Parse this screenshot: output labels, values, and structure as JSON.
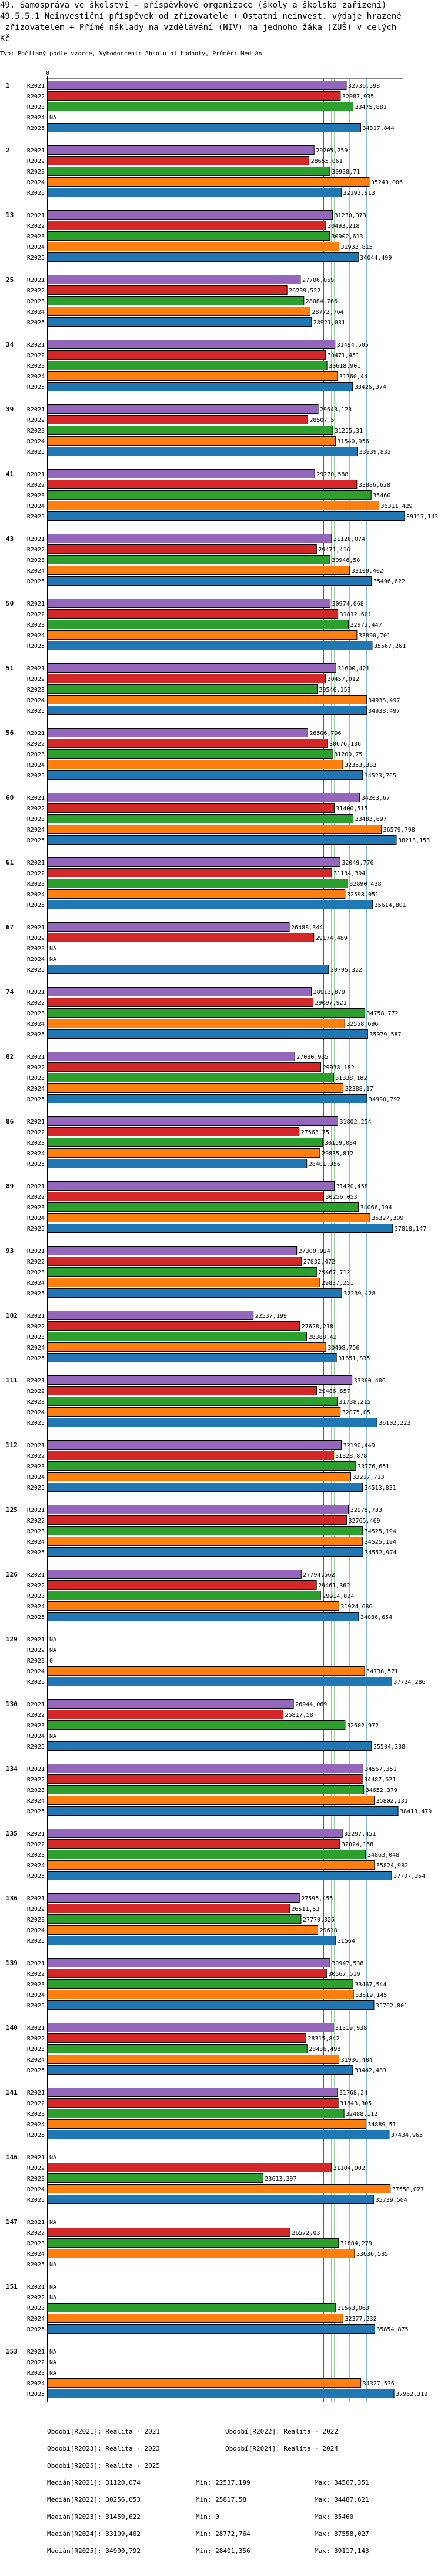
{
  "title_lines": [
    "49. Samospráva ve školství - příspěvkové organizace (školy a školská zařízení)",
    "49.5.5.1 Neinvestiční příspěvek od zřizovatele + Ostatní neinvest. výdaje hrazené",
    " zřizovatelem + Přímé náklady na vzdělávání (NIV) na jednoho žáka (ZUŠ) v celých",
    "Kč"
  ],
  "subtitle": "Typ: Počítaný podle vzorce, Vyhodnocení: Absolutní hodnoty, Průměr: Medián",
  "chart_data": {
    "type": "bar",
    "orientation": "horizontal",
    "title": "49.5.5.1 Neinvestiční příspěvek od zřizovatele + Ostatní neinvest. výdaje hrazené zřizovatelem + Přímé náklady na vzdělávání (NIV) na jednoho žáka (ZUŠ) v celých Kč",
    "xlabel": "",
    "ylabel": "",
    "axis_zero_label": "0",
    "xlim": [
      0,
      39117.143
    ],
    "na_label": "NA",
    "series": [
      {
        "name": "R2021",
        "color": "#9467bd"
      },
      {
        "name": "R2022",
        "color": "#d62728"
      },
      {
        "name": "R2023",
        "color": "#2ca02c"
      },
      {
        "name": "R2024",
        "color": "#ff7f0e"
      },
      {
        "name": "R2025",
        "color": "#1f77b4"
      }
    ],
    "groups": [
      {
        "id": "1",
        "values": [
          "32736,598",
          "32087,935",
          "33475,881",
          null,
          "34317,844"
        ]
      },
      {
        "id": "2",
        "values": [
          "29205,259",
          "28655,061",
          "30938,71",
          "35243,006",
          "32192,913"
        ]
      },
      {
        "id": "13",
        "values": [
          "31230,373",
          "30493,218",
          "30902,613",
          "31933,815",
          "34044,499"
        ]
      },
      {
        "id": "25",
        "values": [
          "27706,069",
          "26239,522",
          "28084,766",
          "28772,764",
          "28921,031"
        ]
      },
      {
        "id": "34",
        "values": [
          "31494,505",
          "30471,451",
          "30618,901",
          "31760,44",
          "33426,374"
        ]
      },
      {
        "id": "39",
        "values": [
          "29643,123",
          "28507,5",
          "31255,31",
          "31540,956",
          "33939,832"
        ]
      },
      {
        "id": "41",
        "values": [
          "29270,588",
          "33886,628",
          "35460",
          "36311,429",
          "39117,143"
        ]
      },
      {
        "id": "43",
        "values": [
          "31120,074",
          "29471,416",
          "30948,58",
          "33109,402",
          "35496,622"
        ]
      },
      {
        "id": "50",
        "values": [
          "30974,068",
          "31812,601",
          "32972,447",
          "33890,701",
          "35567,261"
        ]
      },
      {
        "id": "51",
        "values": [
          "31600,421",
          "30457,012",
          "29546,153",
          "34938,497",
          "34938,497"
        ]
      },
      {
        "id": "56",
        "values": [
          "28506,796",
          "30676,136",
          "31200,75",
          "32353,383",
          "34523,765"
        ]
      },
      {
        "id": "60",
        "values": [
          "34203,67",
          "31400,515",
          "33483,697",
          "36579,798",
          "38213,153"
        ]
      },
      {
        "id": "61",
        "values": [
          "32049,776",
          "31134,394",
          "32890,438",
          "32598,051",
          "35614,801"
        ]
      },
      {
        "id": "67",
        "values": [
          "26488,344",
          "29174,489",
          null,
          null,
          "30795,322"
        ]
      },
      {
        "id": "74",
        "values": [
          "28913,879",
          "29097,921",
          "34758,772",
          "32558,696",
          "35079,587"
        ]
      },
      {
        "id": "82",
        "values": [
          "27080,935",
          "29938,182",
          "31338,182",
          "32388,17",
          "34990,792"
        ]
      },
      {
        "id": "86",
        "values": [
          "31802,254",
          "27563,75",
          "30159,034",
          "29835,812",
          "28401,356"
        ]
      },
      {
        "id": "89",
        "values": [
          "31420,458",
          "30256,053",
          "34066,194",
          "35327,309",
          "37818,147"
        ]
      },
      {
        "id": "93",
        "values": [
          "27300,924",
          "27832,472",
          "29467,712",
          "29837,251",
          "32239,428"
        ]
      },
      {
        "id": "102",
        "values": [
          "22537,199",
          "27628,218",
          "28388,42",
          "30498,756",
          "31651,835"
        ]
      },
      {
        "id": "111",
        "values": [
          "33360,486",
          "29486,857",
          "31738,215",
          "32075,05",
          "36102,223"
        ]
      },
      {
        "id": "112",
        "values": [
          "32190,449",
          "31328,878",
          "33776,651",
          "33217,713",
          "34513,831"
        ]
      },
      {
        "id": "125",
        "values": [
          "32975,733",
          "32765,469",
          "34525,194",
          "34525,194",
          "34552,974"
        ]
      },
      {
        "id": "126",
        "values": [
          "27794,562",
          "29461,362",
          "29914,824",
          "31924,686",
          "34086,654"
        ]
      },
      {
        "id": "129",
        "values": [
          null,
          null,
          "0",
          "34738,571",
          "37724,286"
        ]
      },
      {
        "id": "130",
        "values": [
          "26944,069",
          "25817,58",
          "32602,972",
          null,
          "35504,338"
        ]
      },
      {
        "id": "134",
        "values": [
          "34567,351",
          "34487,621",
          "34652,379",
          "35802,131",
          "38413,479"
        ]
      },
      {
        "id": "135",
        "values": [
          "32297,451",
          "32024,168",
          "34863,048",
          "35824,982",
          "37707,354"
        ]
      },
      {
        "id": "136",
        "values": [
          "27595,455",
          "26511,53",
          "27770,325",
          "29618",
          "31564"
        ]
      },
      {
        "id": "139",
        "values": [
          "30947,538",
          "30567,519",
          "33467,544",
          "33519,145",
          "35762,801"
        ]
      },
      {
        "id": "140",
        "values": [
          "31319,938",
          "28315,842",
          "28436,498",
          "31936,484",
          "33442,483"
        ]
      },
      {
        "id": "141",
        "values": [
          "31768,24",
          "31843,305",
          "32488,112",
          "34889,51",
          "37434,965"
        ]
      },
      {
        "id": "146",
        "values": [
          null,
          "31104,902",
          "23613,397",
          "37558,027",
          "35739,504"
        ]
      },
      {
        "id": "147",
        "values": [
          null,
          "26572,03",
          "31884,279",
          "33636,585",
          null
        ]
      },
      {
        "id": "151",
        "values": [
          null,
          null,
          "31563,063",
          "32377,232",
          "35854,875"
        ]
      },
      {
        "id": "153",
        "values": [
          null,
          null,
          null,
          "34327,536",
          "37962,319"
        ]
      }
    ],
    "medians": [
      {
        "series": "R2021",
        "value": "31120,074"
      },
      {
        "series": "R2022",
        "value": "30256,053"
      },
      {
        "series": "R2023",
        "value": "31450,622"
      },
      {
        "series": "R2024",
        "value": "33109,402"
      },
      {
        "series": "R2025",
        "value": "34990,792"
      }
    ]
  },
  "legend": {
    "periods": [
      "Období[R2021]: Realita - 2021",
      "Období[R2022]: Realita - 2022",
      "Období[R2023]: Realita - 2023",
      "Období[R2024]: Realita - 2024",
      "Období[R2025]: Realita - 2025"
    ],
    "stats": [
      {
        "median": "Medián[R2021]: 31120,074",
        "min": "Min: 22537,199",
        "max": "Max: 34567,351"
      },
      {
        "median": "Medián[R2022]: 30256,053",
        "min": "Min: 25817,58",
        "max": "Max: 34487,621"
      },
      {
        "median": "Medián[R2023]: 31450,622",
        "min": "Min: 0",
        "max": "Max: 35460"
      },
      {
        "median": "Medián[R2024]: 33109,402",
        "min": "Min: 28772,764",
        "max": "Max: 37558,027"
      },
      {
        "median": "Medián[R2025]: 34990,792",
        "min": "Min: 28401,356",
        "max": "Max: 39117,143"
      }
    ]
  }
}
